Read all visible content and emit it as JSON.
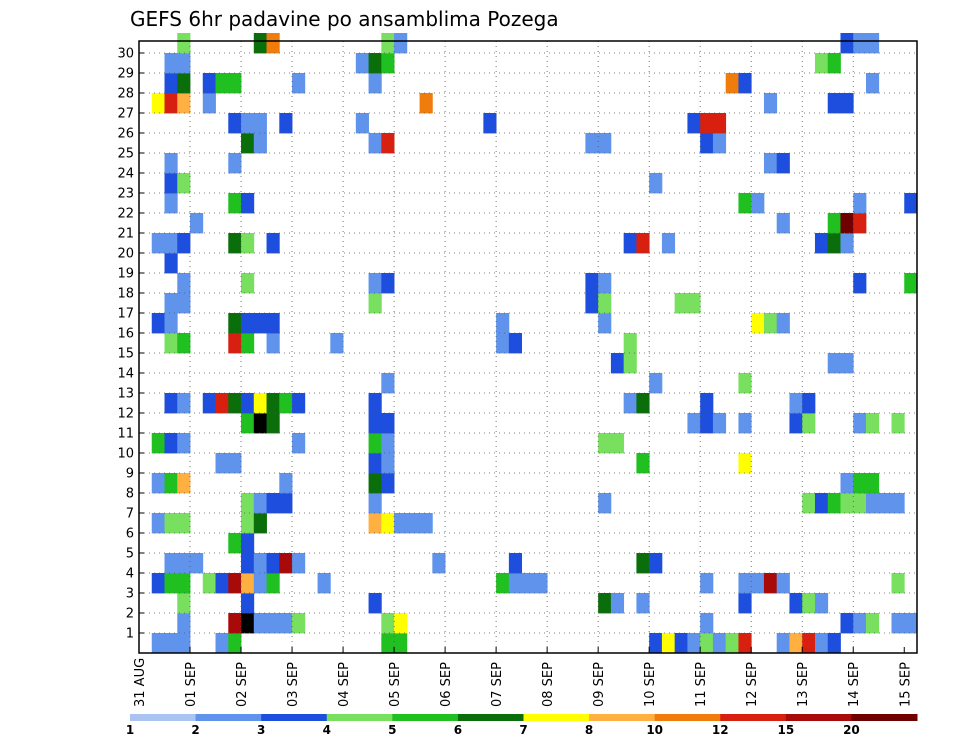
{
  "chart_data": {
    "type": "heatmap",
    "title": "GEFS 6hr padavine po ansamblima Pozega",
    "xlabel": "",
    "ylabel": "",
    "x_ticks": [
      "31 AUG",
      "01 SEP",
      "02 SEP",
      "03 SEP",
      "04 SEP",
      "05 SEP",
      "06 SEP",
      "07 SEP",
      "08 SEP",
      "09 SEP",
      "10 SEP",
      "11 SEP",
      "12 SEP",
      "13 SEP",
      "14 SEP",
      "15 SEP"
    ],
    "y_ticks": [
      "1",
      "2",
      "3",
      "4",
      "5",
      "6",
      "7",
      "8",
      "9",
      "10",
      "11",
      "12",
      "13",
      "14",
      "15",
      "16",
      "17",
      "18",
      "19",
      "20",
      "21",
      "22",
      "23",
      "24",
      "25",
      "26",
      "27",
      "28",
      "29",
      "30"
    ],
    "x_range": [
      0,
      61
    ],
    "y_range": [
      0,
      30
    ],
    "grid": true,
    "legend_placement": "bottom",
    "legend": {
      "labels": [
        "1",
        "2",
        "3",
        "4",
        "5",
        "6",
        "7",
        "8",
        "10",
        "12",
        "15",
        "20"
      ],
      "colors": [
        "#aac4f2",
        "#6094ec",
        "#1e4ede",
        "#78e05e",
        "#20c020",
        "#0a6e0a",
        "#ffff00",
        "#ffb040",
        "#f07c0c",
        "#d82010",
        "#a80a0a",
        "#6e0000"
      ]
    },
    "cells": [
      [
        1,
        0,
        1
      ],
      [
        2,
        0,
        1
      ],
      [
        3,
        0,
        1
      ],
      [
        6,
        0,
        1
      ],
      [
        7,
        0,
        4
      ],
      [
        19,
        0,
        4
      ],
      [
        20,
        0,
        4
      ],
      [
        40,
        0,
        2
      ],
      [
        41,
        0,
        6
      ],
      [
        42,
        0,
        2
      ],
      [
        43,
        0,
        1
      ],
      [
        44,
        0,
        3
      ],
      [
        45,
        0,
        1
      ],
      [
        46,
        0,
        3
      ],
      [
        47,
        0,
        9
      ],
      [
        50,
        0,
        1
      ],
      [
        51,
        0,
        7
      ],
      [
        52,
        0,
        9
      ],
      [
        53,
        0,
        1
      ],
      [
        54,
        0,
        2
      ],
      [
        3,
        1,
        1
      ],
      [
        7,
        1,
        10
      ],
      [
        8,
        1,
        12
      ],
      [
        9,
        1,
        1
      ],
      [
        10,
        1,
        1
      ],
      [
        11,
        1,
        1
      ],
      [
        12,
        1,
        3
      ],
      [
        19,
        1,
        3
      ],
      [
        20,
        1,
        6
      ],
      [
        44,
        1,
        1
      ],
      [
        55,
        1,
        2
      ],
      [
        56,
        1,
        1
      ],
      [
        57,
        1,
        3
      ],
      [
        59,
        1,
        1
      ],
      [
        60,
        1,
        1
      ],
      [
        3,
        2,
        3
      ],
      [
        8,
        2,
        2
      ],
      [
        18,
        2,
        2
      ],
      [
        36,
        2,
        5
      ],
      [
        37,
        2,
        1
      ],
      [
        39,
        2,
        1
      ],
      [
        47,
        2,
        2
      ],
      [
        51,
        2,
        2
      ],
      [
        52,
        2,
        3
      ],
      [
        53,
        2,
        1
      ],
      [
        1,
        3,
        2
      ],
      [
        2,
        3,
        4
      ],
      [
        3,
        3,
        4
      ],
      [
        5,
        3,
        3
      ],
      [
        6,
        3,
        2
      ],
      [
        7,
        3,
        10
      ],
      [
        8,
        3,
        7
      ],
      [
        9,
        3,
        1
      ],
      [
        10,
        3,
        4
      ],
      [
        14,
        3,
        1
      ],
      [
        28,
        3,
        4
      ],
      [
        29,
        3,
        1
      ],
      [
        30,
        3,
        1
      ],
      [
        31,
        3,
        1
      ],
      [
        44,
        3,
        1
      ],
      [
        47,
        3,
        1
      ],
      [
        48,
        3,
        1
      ],
      [
        49,
        3,
        10
      ],
      [
        50,
        3,
        1
      ],
      [
        59,
        3,
        3
      ],
      [
        2,
        4,
        1
      ],
      [
        3,
        4,
        1
      ],
      [
        4,
        4,
        1
      ],
      [
        8,
        4,
        2
      ],
      [
        9,
        4,
        1
      ],
      [
        10,
        4,
        2
      ],
      [
        11,
        4,
        10
      ],
      [
        12,
        4,
        1
      ],
      [
        23,
        4,
        1
      ],
      [
        29,
        4,
        2
      ],
      [
        39,
        4,
        5
      ],
      [
        40,
        4,
        2
      ],
      [
        7,
        5,
        4
      ],
      [
        8,
        5,
        2
      ],
      [
        1,
        6,
        1
      ],
      [
        2,
        6,
        3
      ],
      [
        3,
        6,
        3
      ],
      [
        8,
        6,
        3
      ],
      [
        9,
        6,
        5
      ],
      [
        18,
        6,
        7
      ],
      [
        19,
        6,
        6
      ],
      [
        20,
        6,
        1
      ],
      [
        21,
        6,
        1
      ],
      [
        22,
        6,
        1
      ],
      [
        8,
        7,
        3
      ],
      [
        9,
        7,
        1
      ],
      [
        10,
        7,
        2
      ],
      [
        11,
        7,
        2
      ],
      [
        18,
        7,
        1
      ],
      [
        36,
        7,
        1
      ],
      [
        52,
        7,
        3
      ],
      [
        53,
        7,
        2
      ],
      [
        54,
        7,
        4
      ],
      [
        55,
        7,
        3
      ],
      [
        56,
        7,
        3
      ],
      [
        57,
        7,
        1
      ],
      [
        58,
        7,
        1
      ],
      [
        59,
        7,
        1
      ],
      [
        1,
        8,
        1
      ],
      [
        2,
        8,
        4
      ],
      [
        3,
        8,
        7
      ],
      [
        11,
        8,
        1
      ],
      [
        18,
        8,
        5
      ],
      [
        19,
        8,
        2
      ],
      [
        55,
        8,
        1
      ],
      [
        56,
        8,
        4
      ],
      [
        57,
        8,
        4
      ],
      [
        6,
        9,
        1
      ],
      [
        7,
        9,
        1
      ],
      [
        18,
        9,
        2
      ],
      [
        19,
        9,
        1
      ],
      [
        39,
        9,
        4
      ],
      [
        47,
        9,
        6
      ],
      [
        1,
        10,
        4
      ],
      [
        2,
        10,
        2
      ],
      [
        3,
        10,
        1
      ],
      [
        12,
        10,
        1
      ],
      [
        18,
        10,
        4
      ],
      [
        19,
        10,
        1
      ],
      [
        36,
        10,
        3
      ],
      [
        37,
        10,
        3
      ],
      [
        8,
        11,
        4
      ],
      [
        9,
        11,
        12
      ],
      [
        10,
        11,
        5
      ],
      [
        18,
        11,
        2
      ],
      [
        19,
        11,
        2
      ],
      [
        43,
        11,
        1
      ],
      [
        44,
        11,
        2
      ],
      [
        45,
        11,
        1
      ],
      [
        47,
        11,
        1
      ],
      [
        51,
        11,
        2
      ],
      [
        52,
        11,
        3
      ],
      [
        56,
        11,
        1
      ],
      [
        57,
        11,
        3
      ],
      [
        59,
        11,
        3
      ],
      [
        2,
        12,
        2
      ],
      [
        3,
        12,
        1
      ],
      [
        5,
        12,
        2
      ],
      [
        6,
        12,
        9
      ],
      [
        7,
        12,
        5
      ],
      [
        8,
        12,
        2
      ],
      [
        9,
        12,
        6
      ],
      [
        10,
        12,
        5
      ],
      [
        11,
        12,
        4
      ],
      [
        12,
        12,
        2
      ],
      [
        18,
        12,
        2
      ],
      [
        38,
        12,
        1
      ],
      [
        39,
        12,
        5
      ],
      [
        44,
        12,
        2
      ],
      [
        51,
        12,
        1
      ],
      [
        52,
        12,
        2
      ],
      [
        19,
        13,
        1
      ],
      [
        40,
        13,
        1
      ],
      [
        47,
        13,
        3
      ],
      [
        37,
        14,
        2
      ],
      [
        38,
        14,
        3
      ],
      [
        54,
        14,
        1
      ],
      [
        55,
        14,
        1
      ],
      [
        2,
        15,
        3
      ],
      [
        3,
        15,
        4
      ],
      [
        7,
        15,
        9
      ],
      [
        8,
        15,
        4
      ],
      [
        10,
        15,
        1
      ],
      [
        15,
        15,
        1
      ],
      [
        28,
        15,
        1
      ],
      [
        29,
        15,
        2
      ],
      [
        38,
        15,
        3
      ],
      [
        1,
        16,
        2
      ],
      [
        2,
        16,
        1
      ],
      [
        7,
        16,
        5
      ],
      [
        8,
        16,
        2
      ],
      [
        9,
        16,
        2
      ],
      [
        10,
        16,
        2
      ],
      [
        28,
        16,
        1
      ],
      [
        36,
        16,
        1
      ],
      [
        48,
        16,
        6
      ],
      [
        49,
        16,
        3
      ],
      [
        50,
        16,
        1
      ],
      [
        2,
        17,
        1
      ],
      [
        3,
        17,
        1
      ],
      [
        18,
        17,
        3
      ],
      [
        35,
        17,
        2
      ],
      [
        36,
        17,
        3
      ],
      [
        42,
        17,
        3
      ],
      [
        43,
        17,
        3
      ],
      [
        3,
        18,
        1
      ],
      [
        8,
        18,
        3
      ],
      [
        18,
        18,
        1
      ],
      [
        19,
        18,
        2
      ],
      [
        35,
        18,
        2
      ],
      [
        36,
        18,
        1
      ],
      [
        56,
        18,
        2
      ],
      [
        60,
        18,
        4
      ],
      [
        2,
        19,
        2
      ],
      [
        1,
        20,
        1
      ],
      [
        2,
        20,
        1
      ],
      [
        3,
        20,
        2
      ],
      [
        7,
        20,
        5
      ],
      [
        8,
        20,
        3
      ],
      [
        10,
        20,
        2
      ],
      [
        38,
        20,
        2
      ],
      [
        39,
        20,
        9
      ],
      [
        41,
        20,
        1
      ],
      [
        53,
        20,
        2
      ],
      [
        54,
        20,
        5
      ],
      [
        55,
        20,
        1
      ],
      [
        4,
        21,
        1
      ],
      [
        50,
        21,
        1
      ],
      [
        54,
        21,
        4
      ],
      [
        55,
        21,
        11
      ],
      [
        56,
        21,
        9
      ],
      [
        2,
        22,
        1
      ],
      [
        7,
        22,
        4
      ],
      [
        8,
        22,
        2
      ],
      [
        47,
        22,
        4
      ],
      [
        48,
        22,
        1
      ],
      [
        56,
        22,
        1
      ],
      [
        60,
        22,
        2
      ],
      [
        2,
        23,
        2
      ],
      [
        3,
        23,
        3
      ],
      [
        40,
        23,
        1
      ],
      [
        2,
        24,
        1
      ],
      [
        7,
        24,
        1
      ],
      [
        49,
        24,
        1
      ],
      [
        50,
        24,
        2
      ],
      [
        8,
        25,
        5
      ],
      [
        9,
        25,
        1
      ],
      [
        18,
        25,
        1
      ],
      [
        19,
        25,
        9
      ],
      [
        35,
        25,
        1
      ],
      [
        36,
        25,
        1
      ],
      [
        44,
        25,
        2
      ],
      [
        45,
        25,
        1
      ],
      [
        7,
        26,
        2
      ],
      [
        8,
        26,
        1
      ],
      [
        9,
        26,
        1
      ],
      [
        11,
        26,
        2
      ],
      [
        17,
        26,
        1
      ],
      [
        27,
        26,
        2
      ],
      [
        43,
        26,
        2
      ],
      [
        44,
        26,
        9
      ],
      [
        45,
        26,
        9
      ],
      [
        1,
        27,
        6
      ],
      [
        2,
        27,
        9
      ],
      [
        3,
        27,
        7
      ],
      [
        5,
        27,
        1
      ],
      [
        22,
        27,
        8
      ],
      [
        49,
        27,
        1
      ],
      [
        54,
        27,
        2
      ],
      [
        55,
        27,
        2
      ],
      [
        2,
        28,
        2
      ],
      [
        3,
        28,
        5
      ],
      [
        5,
        28,
        2
      ],
      [
        6,
        28,
        4
      ],
      [
        7,
        28,
        4
      ],
      [
        12,
        28,
        1
      ],
      [
        18,
        28,
        1
      ],
      [
        46,
        28,
        8
      ],
      [
        47,
        28,
        2
      ],
      [
        57,
        28,
        1
      ],
      [
        2,
        29,
        1
      ],
      [
        3,
        29,
        1
      ],
      [
        17,
        29,
        1
      ],
      [
        18,
        29,
        5
      ],
      [
        19,
        29,
        4
      ],
      [
        53,
        29,
        3
      ],
      [
        54,
        29,
        4
      ],
      [
        3,
        30,
        3
      ],
      [
        9,
        30,
        5
      ],
      [
        10,
        30,
        8
      ],
      [
        19,
        30,
        3
      ],
      [
        20,
        30,
        1
      ],
      [
        55,
        30,
        2
      ],
      [
        56,
        30,
        1
      ],
      [
        57,
        30,
        1
      ]
    ]
  }
}
